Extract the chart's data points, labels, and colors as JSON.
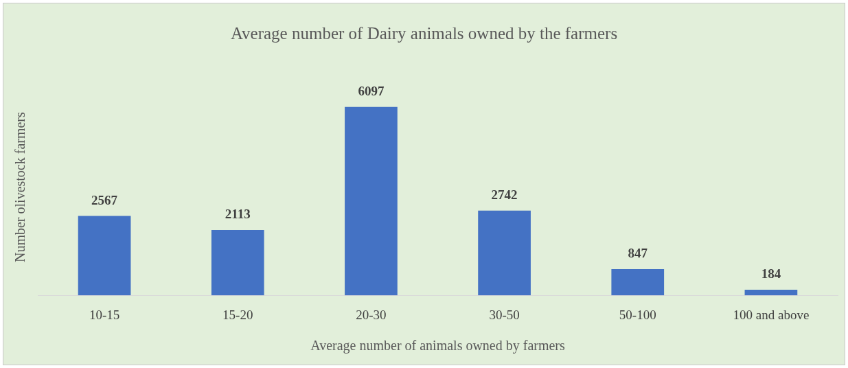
{
  "chart_data": {
    "type": "bar",
    "title": "Average number of Dairy animals owned by the farmers",
    "xlabel": "Average number of animals owned by farmers",
    "ylabel": "Number olivestock farmers",
    "categories": [
      "10-15",
      "15-20",
      "20-30",
      "30-50",
      "50-100",
      "100 and above"
    ],
    "values": [
      2567,
      2113,
      6097,
      2742,
      847,
      184
    ],
    "color": "#4472c4",
    "data_labels": true,
    "tick_labels": "x",
    "grid": false,
    "legend": false
  }
}
